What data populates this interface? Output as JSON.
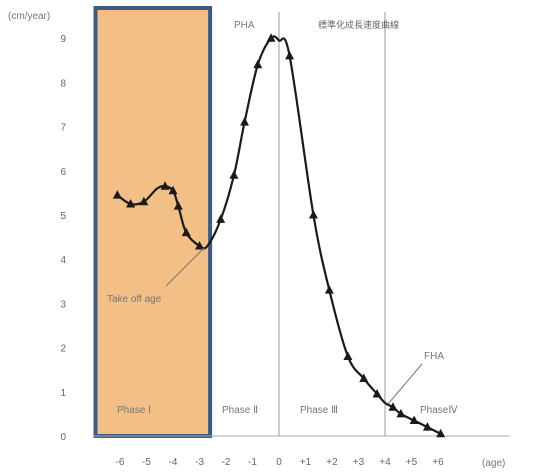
{
  "chart_data": {
    "type": "line",
    "ylabel": "(cm/year)",
    "xlabel": "(age)",
    "xlim": [
      -7,
      7.8
    ],
    "ylim": [
      0,
      9.6
    ],
    "x_ticks": [
      {
        "v": -6,
        "t": "-6"
      },
      {
        "v": -5,
        "t": "-5"
      },
      {
        "v": -4,
        "t": "-4"
      },
      {
        "v": -3,
        "t": "-3"
      },
      {
        "v": -2,
        "t": "-2"
      },
      {
        "v": -1,
        "t": "-1"
      },
      {
        "v": 0,
        "t": "0"
      },
      {
        "v": 1,
        "t": "+1"
      },
      {
        "v": 2,
        "t": "+2"
      },
      {
        "v": 3,
        "t": "+3"
      },
      {
        "v": 4,
        "t": "+4"
      },
      {
        "v": 5,
        "t": "+5"
      },
      {
        "v": 6,
        "t": "+6"
      }
    ],
    "y_ticks": [
      {
        "v": 0,
        "t": "0"
      },
      {
        "v": 1,
        "t": "1"
      },
      {
        "v": 2,
        "t": "2"
      },
      {
        "v": 3,
        "t": "3"
      },
      {
        "v": 4,
        "t": "4"
      },
      {
        "v": 5,
        "t": "5"
      },
      {
        "v": 6,
        "t": "6"
      },
      {
        "v": 7,
        "t": "7"
      },
      {
        "v": 8,
        "t": "8"
      },
      {
        "v": 9,
        "t": "9"
      }
    ],
    "series": [
      {
        "x": [
          -6.1,
          -5.6,
          -5.1,
          -4.6,
          -4.3,
          -4.0,
          -3.8,
          -3.5,
          -3.0,
          -2.7,
          -2.2,
          -1.7,
          -1.3,
          -0.8,
          -0.3,
          0.0,
          0.4,
          1.3,
          1.9,
          2.6,
          3.2,
          3.7,
          4.0,
          4.3,
          4.6,
          5.1,
          5.6,
          6.1
        ],
        "y": [
          5.45,
          5.25,
          5.3,
          5.6,
          5.65,
          5.55,
          5.2,
          4.6,
          4.3,
          4.3,
          4.9,
          5.9,
          7.1,
          8.4,
          9.0,
          8.95,
          8.6,
          5.0,
          3.3,
          1.8,
          1.3,
          0.95,
          0.75,
          0.65,
          0.5,
          0.35,
          0.2,
          0.05
        ],
        "markers": [
          -6.1,
          -5.6,
          -5.1,
          -4.3,
          -4.0,
          -3.8,
          -3.5,
          -3.0,
          -2.2,
          -1.7,
          -1.3,
          -0.8,
          -0.3,
          0.4,
          1.3,
          1.9,
          2.6,
          3.2,
          3.7,
          4.3,
          4.6,
          5.1,
          5.6,
          6.1
        ]
      }
    ],
    "vlines": [
      0,
      4
    ],
    "highlight": {
      "from": -7,
      "to": -2.6,
      "color": "#f2bf86",
      "border": "#3a5a8a"
    },
    "grid": false,
    "annotations": {
      "pha_top": "PHA",
      "title_jp": "標準化成長速度曲線",
      "takeoff": "Take off age",
      "fha": "FHA",
      "phase1": "Phase Ⅰ",
      "phase2": "Phase Ⅱ",
      "phase3": "Phase Ⅲ",
      "phase4": "PhaseⅣ"
    },
    "line_color": "#1a1a1a"
  }
}
